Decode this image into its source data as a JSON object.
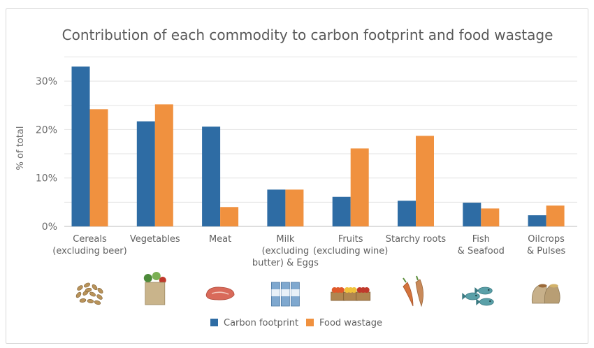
{
  "chart_data": {
    "type": "bar",
    "title": "Contribution of each commodity to carbon footprint and food wastage",
    "ylabel": "% of total",
    "ylim": [
      0,
      35
    ],
    "yticks": [
      "0%",
      "10%",
      "20%",
      "30%"
    ],
    "grid": true,
    "legend_position": "bottom",
    "categories": [
      [
        "Cereals",
        "(excluding beer)"
      ],
      [
        "Vegetables"
      ],
      [
        "Meat"
      ],
      [
        "Milk",
        "(excluding",
        "butter) & Eggs"
      ],
      [
        "Fruits",
        "(excluding wine)"
      ],
      [
        "Starchy roots"
      ],
      [
        "Fish",
        "& Seafood"
      ],
      [
        "Oilcrops",
        "& Pulses"
      ]
    ],
    "series": [
      {
        "name": "Carbon footprint",
        "color": "#2e6ca4",
        "values": [
          33,
          21.7,
          20.6,
          7.6,
          6.1,
          5.3,
          4.9,
          2.3
        ]
      },
      {
        "name": "Food wastage",
        "color": "#f0913f",
        "values": [
          24.2,
          25.2,
          4.0,
          7.6,
          16.1,
          18.7,
          3.7,
          4.3
        ]
      }
    ],
    "icons": [
      "grains-icon",
      "vegetable-bag-icon",
      "meat-icon",
      "milk-cartons-icon",
      "fruit-crates-icon",
      "starchy-roots-icon",
      "fish-icon",
      "oilcrop-sacks-icon"
    ]
  }
}
